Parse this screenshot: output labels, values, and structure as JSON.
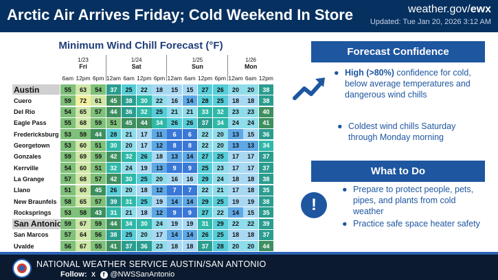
{
  "header": {
    "title": "Arctic Air Arrives Friday; Cold Weekend In Store",
    "site_prefix": "weather.gov/",
    "site_office": "ewx",
    "updated": "Updated: Tue Jan 20, 2026 3:12 AM"
  },
  "table": {
    "title": "Minimum Wind Chill Forecast (°F)",
    "days": [
      {
        "date": "1/23",
        "day": "Fri",
        "times": [
          "6am",
          "12pm",
          "6pm"
        ]
      },
      {
        "date": "1/24",
        "day": "Sat",
        "times": [
          "12am",
          "6am",
          "12pm",
          "6pm"
        ]
      },
      {
        "date": "1/25",
        "day": "Sun",
        "times": [
          "12am",
          "6am",
          "12pm",
          "6pm"
        ]
      },
      {
        "date": "1/26",
        "day": "Mon",
        "times": [
          "12am",
          "6am",
          "12pm"
        ]
      }
    ],
    "rows": [
      {
        "city": "Austin",
        "major": true,
        "values": [
          55,
          63,
          54,
          37,
          25,
          22,
          18,
          15,
          15,
          27,
          26,
          20,
          20,
          38
        ]
      },
      {
        "city": "Cuero",
        "major": false,
        "values": [
          59,
          72,
          61,
          45,
          38,
          30,
          22,
          16,
          14,
          28,
          25,
          18,
          18,
          38
        ]
      },
      {
        "city": "Del Rio",
        "major": false,
        "values": [
          54,
          65,
          57,
          44,
          36,
          32,
          25,
          21,
          21,
          33,
          32,
          23,
          23,
          40
        ]
      },
      {
        "city": "Eagle Pass",
        "major": false,
        "values": [
          55,
          68,
          59,
          51,
          45,
          44,
          34,
          26,
          26,
          37,
          34,
          24,
          24,
          41
        ]
      },
      {
        "city": "Fredericksburg",
        "major": false,
        "values": [
          53,
          59,
          44,
          28,
          21,
          17,
          11,
          6,
          6,
          22,
          20,
          13,
          15,
          36
        ]
      },
      {
        "city": "Georgetown",
        "major": false,
        "values": [
          53,
          60,
          51,
          30,
          20,
          17,
          12,
          8,
          8,
          22,
          20,
          13,
          13,
          34
        ]
      },
      {
        "city": "Gonzales",
        "major": false,
        "values": [
          59,
          69,
          59,
          42,
          32,
          26,
          18,
          13,
          14,
          27,
          25,
          17,
          17,
          37
        ]
      },
      {
        "city": "Kerrville",
        "major": false,
        "values": [
          54,
          60,
          51,
          32,
          24,
          19,
          13,
          9,
          9,
          25,
          23,
          17,
          17,
          37
        ]
      },
      {
        "city": "La Grange",
        "major": false,
        "values": [
          57,
          68,
          57,
          42,
          30,
          25,
          20,
          16,
          16,
          29,
          24,
          18,
          18,
          38
        ]
      },
      {
        "city": "Llano",
        "major": false,
        "values": [
          51,
          60,
          45,
          26,
          20,
          18,
          12,
          7,
          7,
          22,
          21,
          17,
          18,
          35
        ]
      },
      {
        "city": "New Braunfels",
        "major": false,
        "values": [
          58,
          65,
          57,
          39,
          31,
          25,
          19,
          14,
          14,
          29,
          25,
          19,
          19,
          38
        ]
      },
      {
        "city": "Rocksprings",
        "major": false,
        "values": [
          53,
          58,
          43,
          31,
          21,
          18,
          12,
          9,
          9,
          27,
          22,
          14,
          15,
          35
        ]
      },
      {
        "city": "San Antonio",
        "major": true,
        "values": [
          59,
          67,
          59,
          44,
          34,
          30,
          24,
          19,
          19,
          31,
          29,
          22,
          22,
          39
        ]
      },
      {
        "city": "San Marcos",
        "major": false,
        "values": [
          57,
          64,
          56,
          38,
          25,
          20,
          17,
          14,
          14,
          26,
          25,
          18,
          18,
          37
        ]
      },
      {
        "city": "Uvalde",
        "major": false,
        "values": [
          56,
          67,
          55,
          41,
          37,
          36,
          23,
          18,
          18,
          37,
          28,
          20,
          20,
          44
        ]
      }
    ]
  },
  "confidence": {
    "title": "Forecast Confidence",
    "icon": "trending-up-icon",
    "bullets": [
      {
        "strong": "High (>80%)",
        "text": " confidence for cold, below average temperatures and dangerous wind chills"
      },
      {
        "strong": "",
        "text": "Coldest wind chills Saturday through Monday morning"
      }
    ]
  },
  "todo": {
    "title": "What to Do",
    "icon": "alert-icon",
    "icon_glyph": "!",
    "bullets": [
      {
        "text": "Prepare to protect people, pets, pipes, and plants from cold weather"
      },
      {
        "text": "Practice safe space heater safety"
      }
    ]
  },
  "footer": {
    "office": "NATIONAL WEATHER SERVICE AUSTIN/SAN ANTONIO",
    "follow_label": "Follow:",
    "x_glyph": "X",
    "fb_glyph": "f",
    "handle": "@NWSSanAntonio"
  },
  "colors": {
    "header_bg": "#06305f",
    "panel_blue": "#1e56a0",
    "footer_bg": "#0b1a2e"
  }
}
